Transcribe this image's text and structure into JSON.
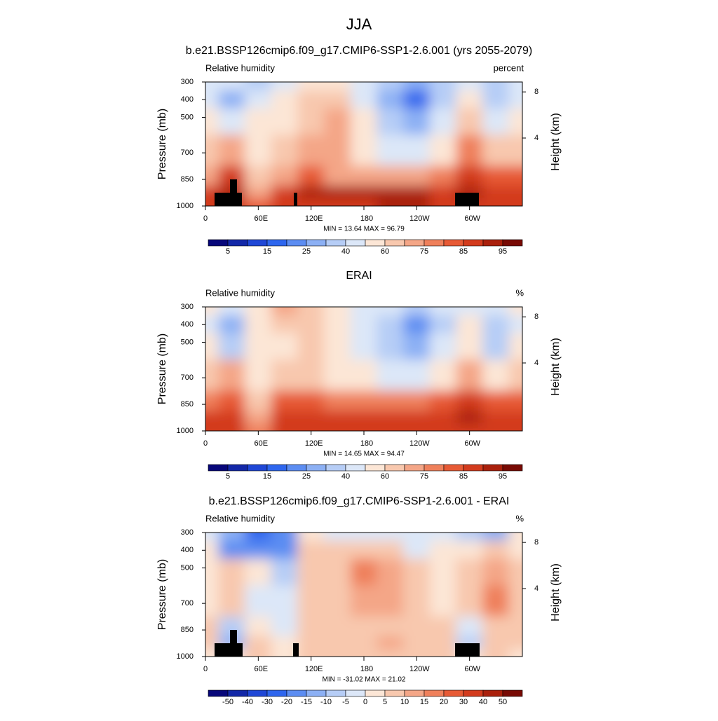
{
  "title": "JJA",
  "chart_data": [
    {
      "type": "contour",
      "title": "b.e21.BSSP126cmip6.f09_g17.CMIP6-SSP1-2.6.001 (yrs 2055-2079)",
      "left_subtitle": "Relative humidity",
      "right_subtitle": "percent",
      "ylabel": "Pressure (mb)",
      "y2label": "Height (km)",
      "stats": "MIN =  13.64  MAX =  96.79",
      "x": [
        0,
        30,
        60,
        90,
        120,
        150,
        180,
        210,
        240,
        270,
        300,
        330,
        360
      ],
      "y": [
        300,
        400,
        500,
        700,
        850,
        925,
        1000
      ],
      "z": [
        [
          45,
          40,
          35,
          45,
          55,
          50,
          40,
          30,
          25,
          35,
          45,
          30,
          45
        ],
        [
          45,
          25,
          45,
          50,
          60,
          60,
          45,
          25,
          15,
          30,
          50,
          30,
          45
        ],
        [
          55,
          45,
          55,
          55,
          65,
          70,
          50,
          35,
          25,
          40,
          60,
          45,
          55
        ],
        [
          60,
          70,
          55,
          60,
          70,
          70,
          55,
          45,
          45,
          55,
          75,
          60,
          60
        ],
        [
          70,
          85,
          60,
          70,
          80,
          70,
          70,
          70,
          70,
          75,
          85,
          80,
          80
        ],
        [
          85,
          90,
          70,
          85,
          90,
          90,
          90,
          92,
          90,
          88,
          90,
          88,
          88
        ],
        [
          85,
          88,
          80,
          85,
          88,
          88,
          88,
          90,
          90,
          88,
          88,
          88,
          85
        ]
      ],
      "xlim": [
        0,
        360
      ],
      "xticks": [
        0,
        {
          "value": 60,
          "label": "60E"
        },
        {
          "value": 120,
          "label": "120E"
        },
        180,
        {
          "value": 240,
          "label": "120W"
        },
        {
          "value": 300,
          "label": "60W"
        }
      ],
      "ylim": [
        1000,
        300
      ],
      "yticks": [
        300,
        400,
        500,
        700,
        850,
        1000
      ],
      "y2ticks": [
        4,
        8
      ],
      "levels": [
        5,
        10,
        15,
        20,
        25,
        30,
        40,
        50,
        60,
        70,
        75,
        80,
        85,
        90,
        95
      ],
      "cbar_ticks": [
        5,
        15,
        25,
        40,
        60,
        75,
        85,
        95
      ],
      "colors": [
        "#07077a",
        "#1328a8",
        "#1f47d6",
        "#2e66ee",
        "#5c8df2",
        "#8cb0f4",
        "#b6cdf6",
        "#dce7f8",
        "#fce6d6",
        "#f8c8ae",
        "#f4a687",
        "#ef805b",
        "#e75a35",
        "#d33b1d",
        "#aa200c",
        "#780a04"
      ]
    },
    {
      "type": "contour",
      "title": "ERAI",
      "left_subtitle": "Relative humidity",
      "right_subtitle": "%",
      "ylabel": "Pressure (mb)",
      "y2label": "Height (km)",
      "stats": "MIN =  14.65  MAX =  94.47",
      "x": [
        0,
        30,
        60,
        90,
        120,
        150,
        180,
        210,
        240,
        270,
        300,
        330,
        360
      ],
      "y": [
        300,
        400,
        500,
        700,
        850,
        925,
        1000
      ],
      "z": [
        [
          55,
          45,
          55,
          70,
          60,
          55,
          45,
          40,
          35,
          40,
          45,
          40,
          55
        ],
        [
          45,
          25,
          55,
          60,
          60,
          55,
          45,
          30,
          20,
          35,
          50,
          30,
          45
        ],
        [
          55,
          35,
          55,
          55,
          60,
          55,
          45,
          30,
          25,
          40,
          55,
          35,
          55
        ],
        [
          60,
          70,
          55,
          60,
          60,
          55,
          55,
          45,
          45,
          55,
          70,
          50,
          60
        ],
        [
          75,
          80,
          60,
          80,
          80,
          75,
          75,
          75,
          75,
          80,
          85,
          80,
          80
        ],
        [
          85,
          85,
          70,
          85,
          85,
          85,
          85,
          85,
          85,
          85,
          90,
          85,
          85
        ],
        [
          85,
          85,
          75,
          85,
          85,
          85,
          85,
          85,
          85,
          85,
          85,
          85,
          85
        ]
      ],
      "xlim": [
        0,
        360
      ],
      "xticks": [
        0,
        {
          "value": 60,
          "label": "60E"
        },
        {
          "value": 120,
          "label": "120E"
        },
        180,
        {
          "value": 240,
          "label": "120W"
        },
        {
          "value": 300,
          "label": "60W"
        }
      ],
      "ylim": [
        1000,
        300
      ],
      "yticks": [
        300,
        400,
        500,
        700,
        850,
        1000
      ],
      "y2ticks": [
        4,
        8
      ],
      "levels": [
        5,
        10,
        15,
        20,
        25,
        30,
        40,
        50,
        60,
        70,
        75,
        80,
        85,
        90,
        95
      ],
      "cbar_ticks": [
        5,
        15,
        25,
        40,
        60,
        75,
        85,
        95
      ],
      "colors": [
        "#07077a",
        "#1328a8",
        "#1f47d6",
        "#2e66ee",
        "#5c8df2",
        "#8cb0f4",
        "#b6cdf6",
        "#dce7f8",
        "#fce6d6",
        "#f8c8ae",
        "#f4a687",
        "#ef805b",
        "#e75a35",
        "#d33b1d",
        "#aa200c",
        "#780a04"
      ]
    },
    {
      "type": "contour",
      "title": "b.e21.BSSP126cmip6.f09_g17.CMIP6-SSP1-2.6.001 - ERAI",
      "left_subtitle": "Relative humidity",
      "right_subtitle": "%",
      "ylabel": "Pressure (mb)",
      "y2label": "Height (km)",
      "stats": "MIN = -31.02  MAX =  21.02",
      "x": [
        0,
        30,
        60,
        90,
        120,
        150,
        180,
        210,
        240,
        270,
        300,
        330,
        360
      ],
      "y": [
        300,
        400,
        500,
        700,
        850,
        925,
        1000
      ],
      "z": [
        [
          -5,
          -15,
          -30,
          -20,
          0,
          -5,
          -5,
          -2,
          -2,
          -2,
          -10,
          -15,
          0
        ],
        [
          0,
          -20,
          -20,
          -20,
          5,
          5,
          5,
          5,
          -2,
          0,
          0,
          5,
          0
        ],
        [
          0,
          5,
          0,
          -10,
          5,
          5,
          15,
          10,
          5,
          2,
          5,
          10,
          5
        ],
        [
          0,
          5,
          -5,
          -2,
          5,
          5,
          10,
          10,
          5,
          2,
          5,
          15,
          5
        ],
        [
          5,
          -10,
          0,
          -2,
          5,
          5,
          5,
          5,
          5,
          5,
          -5,
          5,
          5
        ],
        [
          5,
          -15,
          5,
          2,
          5,
          5,
          5,
          10,
          5,
          5,
          -10,
          5,
          5
        ],
        [
          2,
          2,
          5,
          2,
          5,
          5,
          5,
          5,
          5,
          5,
          2,
          5,
          2
        ]
      ],
      "xlim": [
        0,
        360
      ],
      "xticks": [
        0,
        {
          "value": 60,
          "label": "60E"
        },
        {
          "value": 120,
          "label": "120E"
        },
        180,
        {
          "value": 240,
          "label": "120W"
        },
        {
          "value": 300,
          "label": "60W"
        }
      ],
      "ylim": [
        1000,
        300
      ],
      "yticks": [
        300,
        400,
        500,
        700,
        850,
        1000
      ],
      "y2ticks": [
        4,
        8
      ],
      "levels": [
        -50,
        -40,
        -30,
        -20,
        -15,
        -10,
        -5,
        0,
        5,
        10,
        15,
        20,
        30,
        40,
        50
      ],
      "cbar_ticks": [
        -50,
        -40,
        -30,
        -20,
        -15,
        -10,
        -5,
        0,
        5,
        10,
        15,
        20,
        30,
        40,
        50
      ],
      "colors": [
        "#07077a",
        "#1328a8",
        "#1f47d6",
        "#2e66ee",
        "#5c8df2",
        "#8cb0f4",
        "#b6cdf6",
        "#dce7f8",
        "#fce6d6",
        "#f8c8ae",
        "#f4a687",
        "#ef805b",
        "#e75a35",
        "#d33b1d",
        "#aa200c",
        "#780a04"
      ]
    }
  ]
}
